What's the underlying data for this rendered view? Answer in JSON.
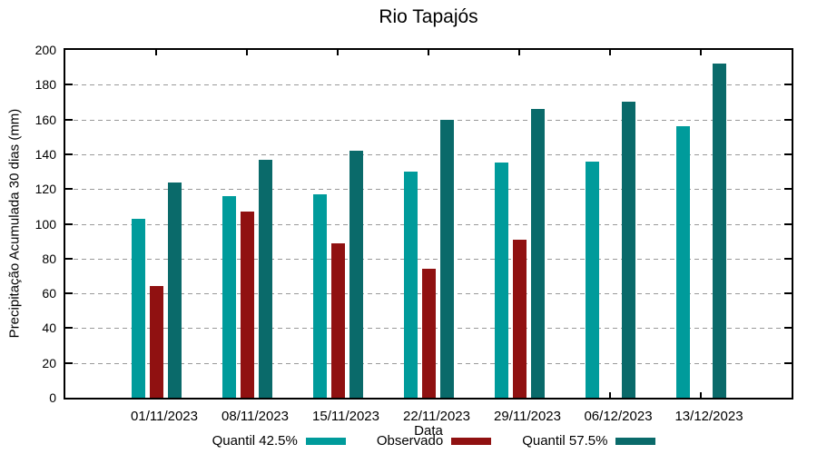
{
  "chart_data": {
    "type": "bar",
    "title": "Rio Tapajós",
    "xlabel": "Data",
    "ylabel": "Precipitação Acumulada 30 dias (mm)",
    "ylim": [
      0,
      200
    ],
    "ytick_step": 20,
    "grid": true,
    "legend_position": "bottom",
    "categories": [
      "01/11/2023",
      "08/11/2023",
      "15/11/2023",
      "22/11/2023",
      "29/11/2023",
      "06/12/2023",
      "13/12/2023"
    ],
    "series": [
      {
        "name": "Quantil 42.5%",
        "color": "#009B9B",
        "values": [
          103,
          116,
          117,
          130,
          135,
          136,
          156
        ]
      },
      {
        "name": "Observado",
        "color": "#901111",
        "values": [
          64,
          107,
          89,
          74,
          91,
          null,
          null
        ]
      },
      {
        "name": "Quantil 57.5%",
        "color": "#0A6A6A",
        "values": [
          124,
          137,
          142,
          160,
          166,
          170,
          192
        ]
      }
    ],
    "colors": {
      "axis": "#000000",
      "grid": "#999999",
      "background": "#FFFFFF",
      "text": "#000000"
    }
  }
}
